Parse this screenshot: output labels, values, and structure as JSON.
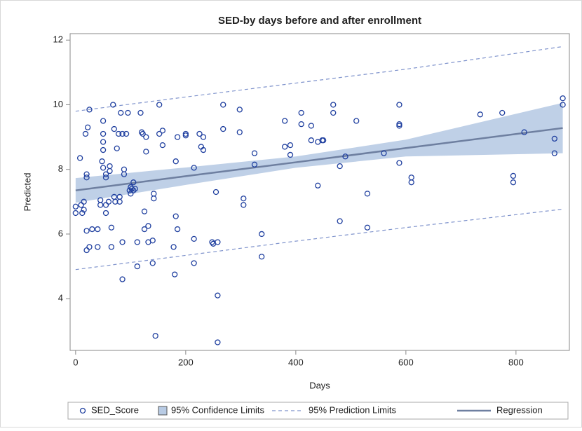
{
  "chart_data": {
    "type": "scatter",
    "title": "SED-by days before and after enrollment",
    "x_label": "Days",
    "y_label": "Predicted",
    "xlim": [
      -10,
      897
    ],
    "ylim": [
      2.4,
      12.2
    ],
    "xticks": [
      0,
      200,
      400,
      600,
      800
    ],
    "yticks": [
      4,
      6,
      8,
      10,
      12
    ],
    "series": [
      {
        "name": "SED_Score",
        "type": "scatter",
        "color": "#1f3f9f",
        "x": [
          0,
          0,
          8,
          10,
          12,
          15,
          15,
          18,
          20,
          20,
          20,
          20,
          22,
          25,
          25,
          30,
          40,
          40,
          45,
          45,
          48,
          50,
          50,
          50,
          50,
          50,
          55,
          55,
          55,
          55,
          60,
          62,
          62,
          65,
          65,
          68,
          70,
          70,
          72,
          75,
          78,
          80,
          80,
          82,
          85,
          85,
          85,
          88,
          88,
          92,
          95,
          98,
          100,
          100,
          102,
          105,
          105,
          108,
          112,
          112,
          118,
          120,
          122,
          125,
          125,
          128,
          128,
          132,
          132,
          140,
          140,
          142,
          142,
          145,
          152,
          152,
          158,
          158,
          178,
          180,
          182,
          182,
          185,
          185,
          200,
          200,
          215,
          215,
          215,
          225,
          228,
          232,
          232,
          248,
          250,
          255,
          258,
          258,
          258,
          268,
          268,
          298,
          298,
          305,
          305,
          325,
          325,
          338,
          338,
          380,
          380,
          390,
          390,
          410,
          410,
          428,
          428,
          440,
          440,
          448,
          450,
          468,
          468,
          480,
          480,
          490,
          510,
          530,
          530,
          560,
          588,
          588,
          588,
          588,
          610,
          610,
          735,
          775,
          795,
          795,
          815,
          870,
          870,
          885,
          885
        ],
        "values": [
          6.85,
          6.65,
          8.35,
          6.9,
          6.65,
          7.0,
          6.75,
          9.1,
          7.85,
          7.75,
          6.1,
          5.5,
          9.3,
          9.85,
          5.6,
          6.15,
          6.15,
          5.6,
          7.05,
          6.9,
          8.25,
          8.05,
          9.5,
          9.1,
          8.85,
          8.6,
          7.85,
          7.75,
          6.9,
          6.65,
          7.0,
          8.1,
          7.95,
          6.2,
          5.6,
          10.0,
          9.25,
          7.15,
          7.0,
          8.65,
          9.1,
          7.15,
          7.0,
          9.75,
          9.1,
          5.75,
          4.6,
          8.0,
          7.85,
          9.1,
          9.75,
          7.35,
          7.45,
          7.25,
          7.4,
          7.6,
          7.35,
          7.4,
          5.0,
          5.75,
          9.75,
          9.15,
          9.1,
          6.7,
          6.15,
          9.0,
          8.55,
          5.75,
          6.25,
          5.8,
          5.1,
          7.25,
          7.1,
          2.85,
          9.1,
          10.0,
          8.75,
          9.2,
          5.6,
          4.75,
          6.55,
          8.25,
          6.15,
          9.0,
          9.05,
          9.1,
          8.05,
          5.85,
          5.1,
          9.1,
          8.7,
          8.6,
          9.0,
          5.75,
          5.7,
          7.3,
          5.75,
          4.1,
          2.65,
          10.0,
          9.25,
          9.85,
          9.15,
          7.1,
          6.9,
          8.5,
          8.15,
          6.0,
          5.3,
          9.5,
          8.7,
          8.75,
          8.45,
          9.75,
          9.4,
          9.35,
          8.9,
          8.85,
          7.5,
          8.9,
          8.9,
          10.0,
          9.75,
          8.1,
          6.4,
          8.4,
          9.5,
          7.25,
          6.2,
          8.5,
          10.0,
          9.4,
          9.35,
          8.2,
          7.75,
          7.6,
          9.7,
          9.75,
          7.8,
          7.6,
          9.15,
          8.95,
          8.5,
          10.2,
          10.0
        ]
      },
      {
        "name": "95% Confidence Limits",
        "type": "band",
        "color": "#b8cbe4",
        "x": [
          0,
          200,
          400,
          600,
          885
        ],
        "lower": [
          6.97,
          7.52,
          8.05,
          8.4,
          8.5
        ],
        "upper": [
          7.73,
          8.06,
          8.4,
          8.92,
          10.06
        ]
      },
      {
        "name": "95% Prediction Limits",
        "type": "limits",
        "color": "#7f93cc",
        "x": [
          0,
          200,
          400,
          600,
          885
        ],
        "lower": [
          4.9,
          5.34,
          5.78,
          6.2,
          6.77
        ],
        "upper": [
          9.8,
          10.24,
          10.67,
          11.1,
          11.8
        ]
      },
      {
        "name": "Regression",
        "type": "line",
        "color": "#6e7fa0",
        "x": [
          0,
          200,
          400,
          600,
          885
        ],
        "values": [
          7.35,
          7.79,
          8.22,
          8.66,
          9.28
        ]
      }
    ]
  }
}
